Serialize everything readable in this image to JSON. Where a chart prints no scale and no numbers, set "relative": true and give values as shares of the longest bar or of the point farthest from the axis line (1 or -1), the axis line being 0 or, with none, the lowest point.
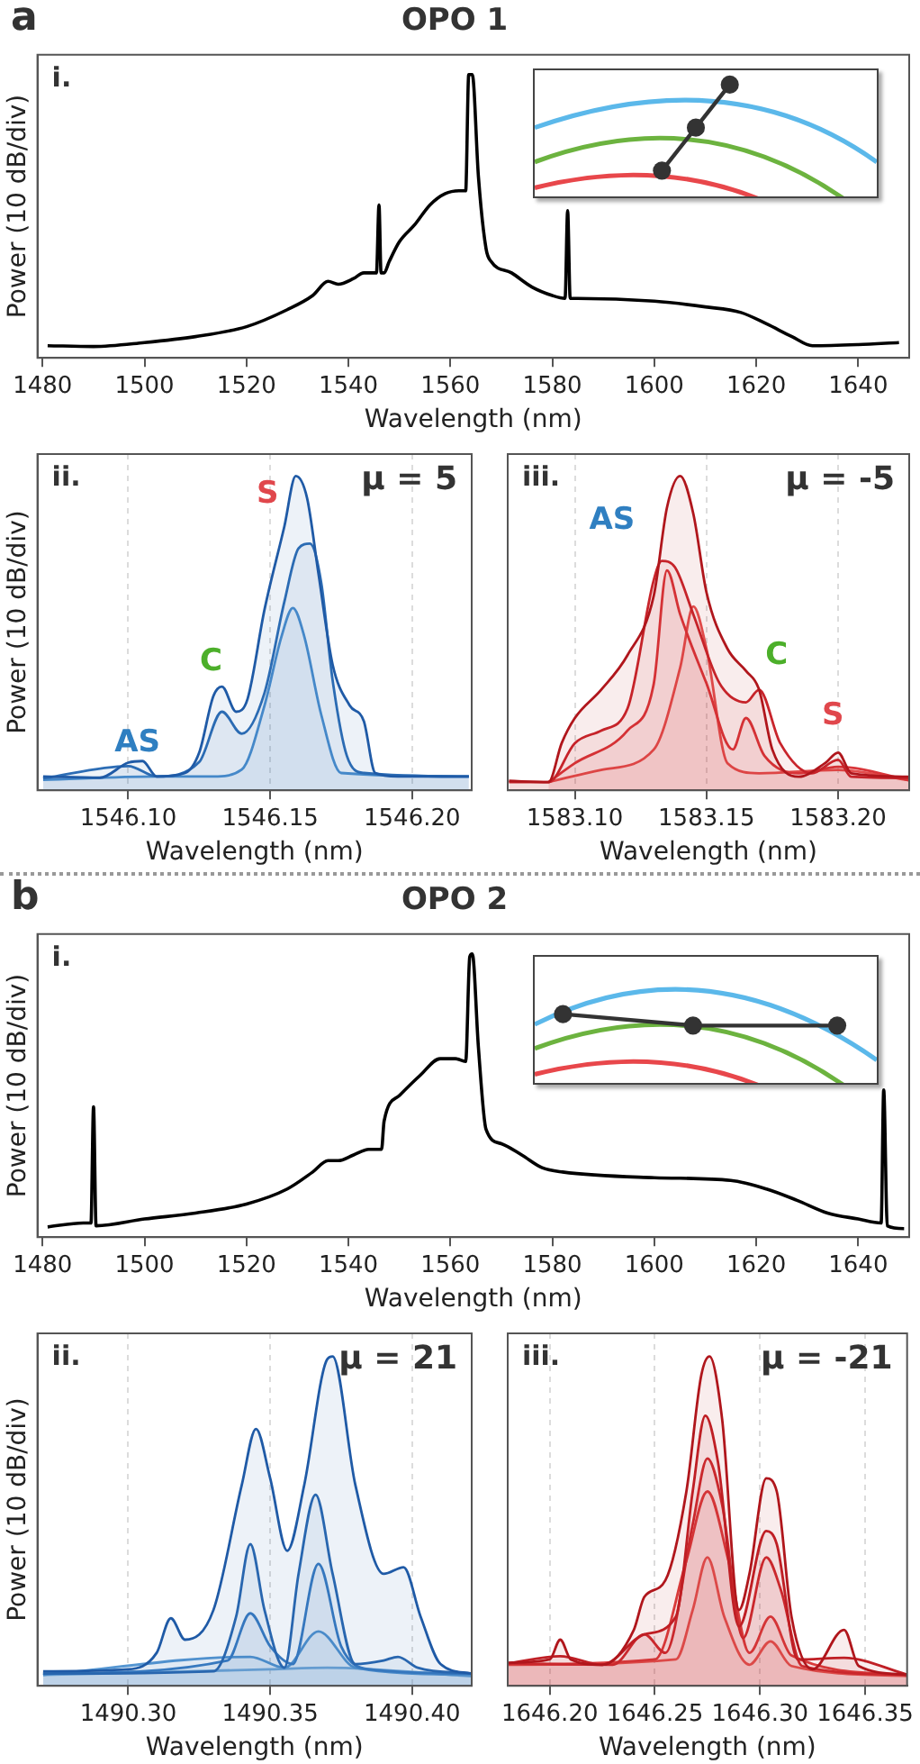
{
  "chart_data": [
    {
      "type": "line",
      "title": "OPO 1",
      "xlabel": "Wavelength (nm)",
      "ylabel": "Power (10 dB/div)",
      "relative": true,
      "marker": "none",
      "xlim": [
        1479,
        1650
      ],
      "xticks": [
        1480,
        1500,
        1520,
        1540,
        1560,
        1580,
        1600,
        1620,
        1640
      ],
      "annotations": [
        "a",
        "i."
      ],
      "series": [
        {
          "color": "#000000",
          "x": [
            1481,
            1490,
            1500,
            1510,
            1520,
            1528,
            1533,
            1536,
            1538,
            1541,
            1543,
            1545.5,
            1546,
            1546.4,
            1547,
            1548,
            1550,
            1553,
            1556,
            1559,
            1562,
            1563,
            1563.6,
            1564.3,
            1565.5,
            1567,
            1568,
            1572,
            1576,
            1580,
            1582.5,
            1583,
            1583.5,
            1585,
            1600,
            1610,
            1617,
            1622,
            1627,
            1631,
            1640,
            1648
          ],
          "values": [
            0.043,
            0.04,
            0.054,
            0.075,
            0.11,
            0.17,
            0.22,
            0.27,
            0.26,
            0.28,
            0.3,
            0.3,
            0.54,
            0.3,
            0.3,
            0.34,
            0.41,
            0.47,
            0.54,
            0.58,
            0.59,
            0.59,
            1,
            1,
            0.64,
            0.385,
            0.34,
            0.3,
            0.25,
            0.22,
            0.21,
            0.52,
            0.21,
            0.21,
            0.2,
            0.18,
            0.16,
            0.12,
            0.075,
            0.043,
            0.047,
            0.054
          ]
        }
      ]
    },
    {
      "type": "area",
      "xlabel": "Wavelength (nm)",
      "ylabel": "Power (10 dB/div)",
      "relative": true,
      "marker": "none",
      "grid": "x",
      "xlim": [
        1546.068,
        1546.221
      ],
      "xticks": [
        {
          "value": 1546.1,
          "label": "1546.10"
        },
        {
          "value": 1546.15,
          "label": "1546.15"
        },
        {
          "value": 1546.2,
          "label": "1546.20"
        }
      ],
      "annotations": [
        "ii.",
        "μ = 5",
        "AS",
        "C",
        "S"
      ],
      "series": [
        {
          "color": "#1f5aa6",
          "x": [
            1546.07,
            1546.09,
            1546.1,
            1546.105,
            1546.11,
            1546.12,
            1546.125,
            1546.13,
            1546.133,
            1546.138,
            1546.142,
            1546.148,
            1546.155,
            1546.159,
            1546.163,
            1546.167,
            1546.172,
            1546.178,
            1546.183,
            1546.187,
            1546.195,
            1546.22
          ],
          "values": [
            0.044,
            0.04,
            0.088,
            0.093,
            0.044,
            0.055,
            0.12,
            0.3,
            0.33,
            0.25,
            0.29,
            0.575,
            0.84,
            1,
            0.93,
            0.69,
            0.4,
            0.27,
            0.22,
            0.055,
            0.044,
            0.044
          ]
        },
        {
          "color": "#2d6db5",
          "x": [
            1546.07,
            1546.1,
            1546.11,
            1546.125,
            1546.133,
            1546.14,
            1546.148,
            1546.155,
            1546.16,
            1546.164,
            1546.168,
            1546.172,
            1546.177,
            1546.183,
            1546.22
          ],
          "values": [
            0.038,
            0.077,
            0.044,
            0.09,
            0.25,
            0.18,
            0.31,
            0.6,
            0.77,
            0.785,
            0.66,
            0.35,
            0.11,
            0.055,
            0.044
          ]
        },
        {
          "color": "#4b8fcf",
          "x": [
            1546.07,
            1546.11,
            1546.13,
            1546.14,
            1546.148,
            1546.154,
            1546.158,
            1546.162,
            1546.168,
            1546.175,
            1546.22
          ],
          "values": [
            0.033,
            0.044,
            0.044,
            0.066,
            0.27,
            0.49,
            0.58,
            0.49,
            0.24,
            0.055,
            0.044
          ]
        }
      ]
    },
    {
      "type": "area",
      "xlabel": "Wavelength (nm)",
      "relative": true,
      "marker": "none",
      "grid": "x",
      "xlim": [
        1583.0745,
        1583.227
      ],
      "xticks": [
        {
          "value": 1583.1,
          "label": "1583.10"
        },
        {
          "value": 1583.15,
          "label": "1583.15"
        },
        {
          "value": 1583.2,
          "label": "1583.20"
        }
      ],
      "annotations": [
        "iii.",
        "μ = -5",
        "AS",
        "C",
        "S"
      ],
      "series": [
        {
          "color": "#b0161c",
          "x": [
            1583.075,
            1583.09,
            1583.095,
            1583.1,
            1583.11,
            1583.12,
            1583.13,
            1583.135,
            1583.14,
            1583.145,
            1583.15,
            1583.158,
            1583.165,
            1583.17,
            1583.175,
            1583.185,
            1583.195,
            1583.2,
            1583.205,
            1583.227
          ],
          "values": [
            0.03,
            0.026,
            0.15,
            0.23,
            0.32,
            0.43,
            0.62,
            0.9,
            1,
            0.88,
            0.63,
            0.45,
            0.38,
            0.32,
            0.13,
            0.043,
            0.086,
            0.12,
            0.054,
            0.043
          ]
        },
        {
          "color": "#c8242b",
          "x": [
            1583.075,
            1583.09,
            1583.1,
            1583.11,
            1583.12,
            1583.13,
            1583.133,
            1583.138,
            1583.145,
            1583.155,
            1583.165,
            1583.17,
            1583.178,
            1583.19,
            1583.2,
            1583.205,
            1583.227
          ],
          "values": [
            0.026,
            0.026,
            0.15,
            0.19,
            0.26,
            0.67,
            0.73,
            0.71,
            0.56,
            0.34,
            0.28,
            0.32,
            0.15,
            0.054,
            0.097,
            0.043,
            0.039
          ]
        },
        {
          "color": "#d9363a",
          "x": [
            1583.09,
            1583.1,
            1583.12,
            1583.13,
            1583.135,
            1583.14,
            1583.15,
            1583.16,
            1583.165,
            1583.172,
            1583.185,
            1583.2,
            1583.227
          ],
          "values": [
            0.026,
            0.086,
            0.19,
            0.34,
            0.7,
            0.56,
            0.34,
            0.13,
            0.23,
            0.11,
            0.054,
            0.075,
            0.032
          ]
        },
        {
          "color": "#e4504f",
          "x": [
            1583.09,
            1583.11,
            1583.13,
            1583.14,
            1583.145,
            1583.15,
            1583.158,
            1583.17,
            1583.2,
            1583.227
          ],
          "values": [
            0.026,
            0.065,
            0.13,
            0.39,
            0.585,
            0.45,
            0.086,
            0.054,
            0.065,
            0.032
          ]
        }
      ]
    },
    {
      "type": "line",
      "title": "OPO 2",
      "xlabel": "Wavelength (nm)",
      "ylabel": "Power (10 dB/div)",
      "relative": true,
      "marker": "none",
      "xlim": [
        1479,
        1650
      ],
      "xticks": [
        1480,
        1500,
        1520,
        1540,
        1560,
        1580,
        1600,
        1620,
        1640
      ],
      "annotations": [
        "b",
        "i."
      ],
      "series": [
        {
          "color": "#000000",
          "x": [
            1481,
            1488,
            1489.5,
            1490,
            1490.5,
            1500,
            1510,
            1520,
            1528,
            1533,
            1536,
            1538,
            1541,
            1544,
            1546.5,
            1547,
            1550,
            1554,
            1558,
            1561,
            1563,
            1563.8,
            1564.3,
            1565.5,
            1567,
            1570,
            1574,
            1578,
            1582,
            1600,
            1615,
            1622,
            1628,
            1634,
            1640,
            1644.5,
            1645,
            1645.7,
            1649
          ],
          "values": [
            0.036,
            0.05,
            0.05,
            0.46,
            0.04,
            0.064,
            0.085,
            0.117,
            0.17,
            0.23,
            0.27,
            0.27,
            0.29,
            0.31,
            0.31,
            0.41,
            0.5,
            0.57,
            0.63,
            0.63,
            0.62,
            0.99,
            1,
            0.67,
            0.38,
            0.33,
            0.29,
            0.245,
            0.23,
            0.21,
            0.2,
            0.17,
            0.13,
            0.085,
            0.064,
            0.05,
            0.52,
            0.04,
            0.03
          ]
        }
      ]
    },
    {
      "type": "area",
      "xlabel": "Wavelength (nm)",
      "ylabel": "Power (10 dB/div)",
      "relative": true,
      "marker": "none",
      "grid": "x",
      "xlim": [
        1490.268,
        1490.421
      ],
      "xticks": [
        {
          "value": 1490.3,
          "label": "1490.30"
        },
        {
          "value": 1490.35,
          "label": "1490.35"
        },
        {
          "value": 1490.4,
          "label": "1490.40"
        }
      ],
      "annotations": [
        "ii.",
        "μ = 21"
      ],
      "series": [
        {
          "color": "#1f5aa6",
          "x": [
            1490.27,
            1490.3,
            1490.31,
            1490.315,
            1490.32,
            1490.33,
            1490.34,
            1490.345,
            1490.35,
            1490.356,
            1490.362,
            1490.37,
            1490.372,
            1490.38,
            1490.39,
            1490.397,
            1490.403,
            1490.41,
            1490.421
          ],
          "values": [
            0.044,
            0.05,
            0.1,
            0.205,
            0.14,
            0.23,
            0.61,
            0.78,
            0.63,
            0.41,
            0.61,
            0.99,
            1,
            0.61,
            0.34,
            0.36,
            0.21,
            0.066,
            0.037
          ]
        },
        {
          "color": "#2a68b0",
          "x": [
            1490.27,
            1490.33,
            1490.338,
            1490.343,
            1490.348,
            1490.355,
            1490.36,
            1490.366,
            1490.372,
            1490.38,
            1490.39,
            1490.395,
            1490.402,
            1490.421
          ],
          "values": [
            0.037,
            0.044,
            0.21,
            0.43,
            0.23,
            0.055,
            0.34,
            0.58,
            0.34,
            0.066,
            0.077,
            0.088,
            0.055,
            0.037
          ]
        },
        {
          "color": "#3a7cc2",
          "x": [
            1490.27,
            1490.335,
            1490.343,
            1490.35,
            1490.358,
            1490.367,
            1490.375,
            1490.385,
            1490.421
          ],
          "values": [
            0.037,
            0.077,
            0.22,
            0.12,
            0.066,
            0.37,
            0.12,
            0.05,
            0.037
          ]
        },
        {
          "color": "#5596d2",
          "x": [
            1490.27,
            1490.343,
            1490.355,
            1490.367,
            1490.38,
            1490.421
          ],
          "values": [
            0.033,
            0.088,
            0.055,
            0.165,
            0.055,
            0.033
          ]
        },
        {
          "color": "#7aaedc",
          "x": [
            1490.27,
            1490.35,
            1490.37,
            1490.421
          ],
          "values": [
            0.033,
            0.05,
            0.055,
            0.029
          ]
        }
      ]
    },
    {
      "type": "area",
      "xlabel": "Wavelength (nm)",
      "relative": true,
      "marker": "none",
      "grid": "x",
      "xlim": [
        1646.18,
        1646.37
      ],
      "xticks": [
        {
          "value": 1646.2,
          "label": "1646.20"
        },
        {
          "value": 1646.25,
          "label": "1646.25"
        },
        {
          "value": 1646.3,
          "label": "1646.30"
        },
        {
          "value": 1646.35,
          "label": "1646.35"
        }
      ],
      "annotations": [
        "iii.",
        "μ = -21"
      ],
      "series": [
        {
          "color": "#b0161c",
          "x": [
            1646.18,
            1646.2,
            1646.205,
            1646.21,
            1646.225,
            1646.24,
            1646.245,
            1646.255,
            1646.265,
            1646.272,
            1646.276,
            1646.282,
            1646.29,
            1646.295,
            1646.303,
            1646.308,
            1646.315,
            1646.325,
            1646.34,
            1646.347,
            1646.37
          ],
          "values": [
            0.07,
            0.08,
            0.14,
            0.08,
            0.064,
            0.17,
            0.27,
            0.32,
            0.59,
            0.94,
            1,
            0.81,
            0.23,
            0.34,
            0.63,
            0.59,
            0.21,
            0.05,
            0.17,
            0.06,
            0.034
          ]
        },
        {
          "color": "#c01f25",
          "x": [
            1646.18,
            1646.205,
            1646.225,
            1646.245,
            1646.26,
            1646.268,
            1646.274,
            1646.28,
            1646.29,
            1646.303,
            1646.308,
            1646.318,
            1646.34,
            1646.37
          ],
          "values": [
            0.068,
            0.09,
            0.064,
            0.156,
            0.21,
            0.59,
            0.82,
            0.68,
            0.18,
            0.47,
            0.43,
            0.08,
            0.085,
            0.034
          ]
        },
        {
          "color": "#cf2c30",
          "x": [
            1646.18,
            1646.23,
            1646.245,
            1646.255,
            1646.268,
            1646.275,
            1646.282,
            1646.292,
            1646.303,
            1646.31,
            1646.32,
            1646.37
          ],
          "values": [
            0.068,
            0.064,
            0.156,
            0.1,
            0.49,
            0.69,
            0.55,
            0.145,
            0.39,
            0.29,
            0.06,
            0.034
          ]
        },
        {
          "color": "#dc3d3d",
          "x": [
            1646.18,
            1646.25,
            1646.265,
            1646.275,
            1646.285,
            1646.295,
            1646.305,
            1646.315,
            1646.37
          ],
          "values": [
            0.066,
            0.08,
            0.38,
            0.59,
            0.38,
            0.1,
            0.21,
            0.092,
            0.032
          ]
        },
        {
          "color": "#e65a55",
          "x": [
            1646.18,
            1646.26,
            1646.268,
            1646.275,
            1646.283,
            1646.295,
            1646.305,
            1646.315,
            1646.37
          ],
          "values": [
            0.064,
            0.08,
            0.23,
            0.39,
            0.21,
            0.064,
            0.135,
            0.06,
            0.03
          ]
        }
      ]
    }
  ]
}
